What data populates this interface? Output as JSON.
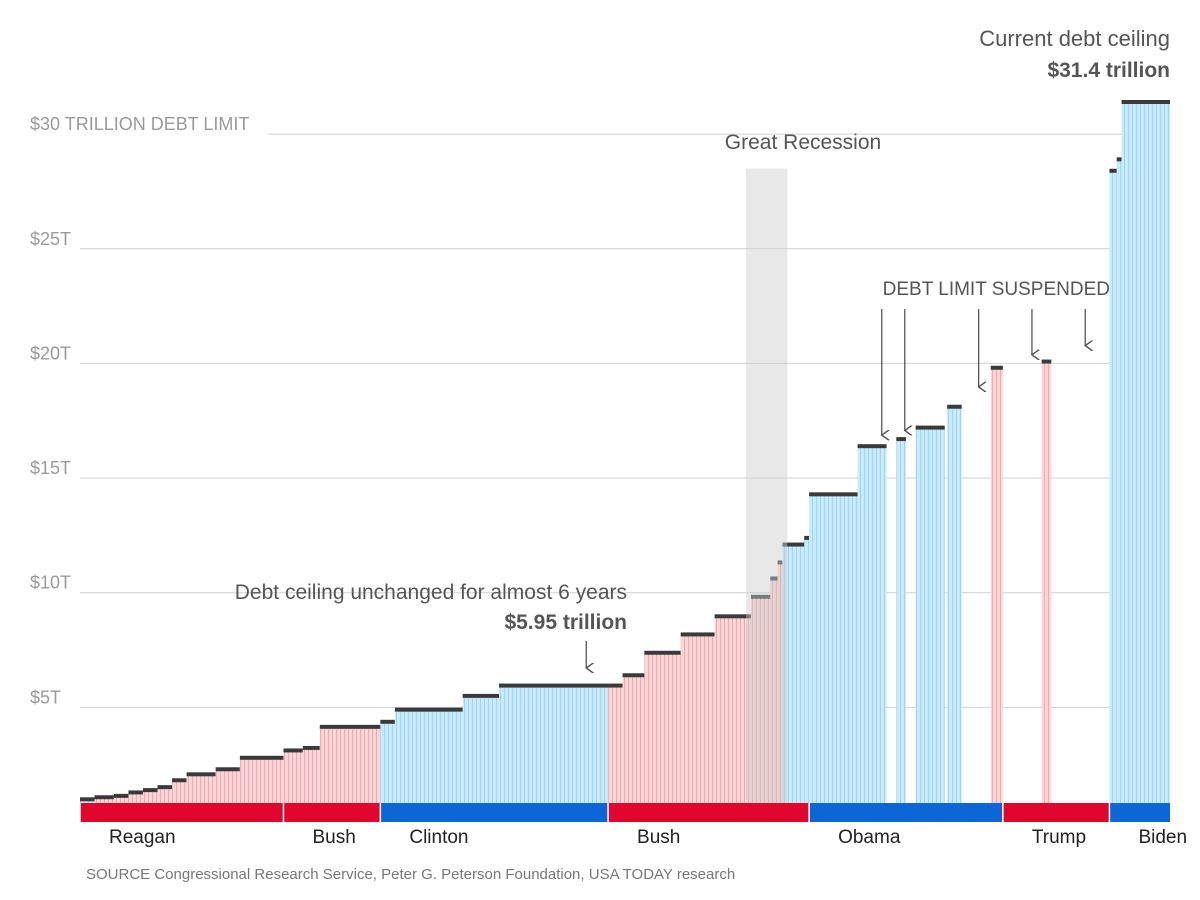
{
  "chart_data": {
    "type": "bar",
    "ylim": [
      0,
      31.4
    ],
    "y_ticks": [
      {
        "value": 5,
        "label": "$5T"
      },
      {
        "value": 10,
        "label": "$10T"
      },
      {
        "value": 15,
        "label": "$15T"
      },
      {
        "value": 20,
        "label": "$20T"
      },
      {
        "value": 25,
        "label": "$25T"
      },
      {
        "value": 30,
        "label": "$30 TRILLION DEBT LIMIT"
      }
    ],
    "grid": true,
    "steps": [
      {
        "start": 1981.0,
        "end": 1981.6,
        "value": 0.99,
        "party": "D"
      },
      {
        "start": 1981.6,
        "end": 1982.4,
        "value": 1.08,
        "party": "R"
      },
      {
        "start": 1982.4,
        "end": 1983.0,
        "value": 1.14,
        "party": "R"
      },
      {
        "start": 1983.0,
        "end": 1983.6,
        "value": 1.29,
        "party": "R"
      },
      {
        "start": 1983.6,
        "end": 1984.2,
        "value": 1.39,
        "party": "R"
      },
      {
        "start": 1984.2,
        "end": 1984.8,
        "value": 1.52,
        "party": "R"
      },
      {
        "start": 1984.8,
        "end": 1985.4,
        "value": 1.82,
        "party": "R"
      },
      {
        "start": 1985.4,
        "end": 1986.6,
        "value": 2.08,
        "party": "R"
      },
      {
        "start": 1986.6,
        "end": 1987.6,
        "value": 2.3,
        "party": "R"
      },
      {
        "start": 1987.6,
        "end": 1989.4,
        "value": 2.8,
        "party": "R"
      },
      {
        "start": 1989.4,
        "end": 1990.2,
        "value": 3.12,
        "party": "R"
      },
      {
        "start": 1990.2,
        "end": 1990.9,
        "value": 3.23,
        "party": "R"
      },
      {
        "start": 1990.9,
        "end": 1993.4,
        "value": 4.15,
        "party": "R"
      },
      {
        "start": 1993.4,
        "end": 1994.0,
        "value": 4.37,
        "party": "D"
      },
      {
        "start": 1994.0,
        "end": 1996.8,
        "value": 4.9,
        "party": "D"
      },
      {
        "start": 1996.8,
        "end": 1998.3,
        "value": 5.5,
        "party": "D"
      },
      {
        "start": 1998.3,
        "end": 2002.8,
        "value": 5.95,
        "party": "D"
      },
      {
        "start": 2002.8,
        "end": 2003.4,
        "value": 5.95,
        "party": "R"
      },
      {
        "start": 2003.4,
        "end": 2004.3,
        "value": 6.4,
        "party": "R"
      },
      {
        "start": 2004.3,
        "end": 2005.8,
        "value": 7.38,
        "party": "R"
      },
      {
        "start": 2005.8,
        "end": 2007.2,
        "value": 8.18,
        "party": "R"
      },
      {
        "start": 2007.2,
        "end": 2008.7,
        "value": 8.97,
        "party": "R"
      },
      {
        "start": 2008.7,
        "end": 2009.5,
        "value": 9.82,
        "party": "R"
      },
      {
        "start": 2009.5,
        "end": 2009.8,
        "value": 10.62,
        "party": "R"
      },
      {
        "start": 2009.8,
        "end": 2010.0,
        "value": 11.32,
        "party": "R"
      },
      {
        "start": 2010.0,
        "end": 2010.9,
        "value": 12.1,
        "party": "D"
      },
      {
        "start": 2010.9,
        "end": 2011.1,
        "value": 12.39,
        "party": "D"
      },
      {
        "start": 2011.1,
        "end": 2013.1,
        "value": 14.29,
        "party": "D"
      },
      {
        "start": 2013.1,
        "end": 2014.3,
        "value": 16.39,
        "party": "D"
      },
      {
        "start": 2014.7,
        "end": 2015.1,
        "value": 16.7,
        "party": "D"
      },
      {
        "start": 2015.5,
        "end": 2016.7,
        "value": 17.2,
        "party": "D"
      },
      {
        "start": 2016.8,
        "end": 2017.4,
        "value": 18.11,
        "party": "D"
      },
      {
        "start": 2018.6,
        "end": 2019.1,
        "value": 19.81,
        "party": "R"
      },
      {
        "start": 2020.7,
        "end": 2021.1,
        "value": 20.08,
        "party": "R"
      },
      {
        "start": 2023.5,
        "end": 2023.8,
        "value": 28.4,
        "party": "D"
      },
      {
        "start": 2023.8,
        "end": 2024.0,
        "value": 28.9,
        "party": "D"
      },
      {
        "start": 2024.0,
        "end": 2026.0,
        "value": 31.4,
        "party": "D"
      }
    ],
    "presidents": [
      {
        "name": "Reagan",
        "start": 1981.0,
        "end": 1989.4,
        "party": "R"
      },
      {
        "name": "Bush",
        "start": 1989.4,
        "end": 1993.4,
        "party": "R"
      },
      {
        "name": "Clinton",
        "start": 1993.4,
        "end": 2002.8,
        "party": "D"
      },
      {
        "name": "Bush",
        "start": 2002.8,
        "end": 2011.1,
        "party": "R"
      },
      {
        "name": "Obama",
        "start": 2011.1,
        "end": 2019.1,
        "party": "D"
      },
      {
        "name": "Trump",
        "start": 2019.1,
        "end": 2023.5,
        "party": "R"
      },
      {
        "name": "Biden",
        "start": 2023.5,
        "end": 2026.0,
        "party": "D"
      }
    ],
    "recession": {
      "label": "Great Recession",
      "start": 2008.5,
      "end": 2010.2,
      "top": 28.5
    },
    "suspensions": {
      "label": "DEBT LIMIT SUSPENDED",
      "arrows": [
        {
          "x": 2014.1,
          "tip": 16.7
        },
        {
          "x": 2015.05,
          "tip": 16.9
        },
        {
          "x": 2018.1,
          "tip": 18.8
        },
        {
          "x": 2020.3,
          "tip": 20.2
        },
        {
          "x": 2022.5,
          "tip": 20.6
        }
      ]
    },
    "annotations": {
      "unchanged": {
        "text": "Debt ceiling unchanged for almost 6 years",
        "value": "$5.95 trillion",
        "arrow_x": 2001.9
      },
      "current": {
        "text": "Current debt ceiling",
        "value": "$31.4 trillion"
      }
    },
    "source": "SOURCE Congressional Research Service, Peter G. Peterson Foundation, USA TODAY research",
    "colors": {
      "R_bar_fill": "#fbd6d8",
      "R_bar_line": "#f4a9ad",
      "D_bar_fill": "#c8eafb",
      "D_bar_line": "#9ed6f4",
      "R_band": "#e1062d",
      "D_band": "#0d66d6",
      "cap": "#3a3a3a",
      "grid": "#d0d0d0",
      "recession": "#cccccc"
    }
  }
}
